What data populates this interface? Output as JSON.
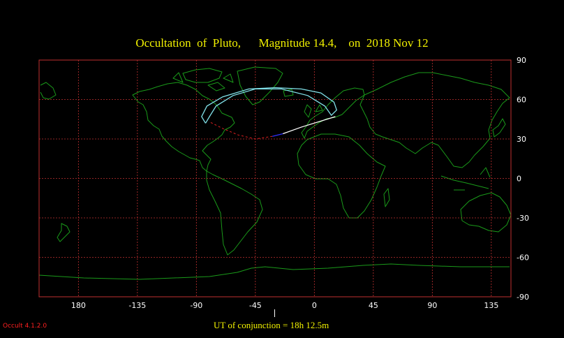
{
  "title": "Occultation  of  Pluto,      Magnitude 14.4,    on  2018 Nov 12",
  "software_version": "Occult 4.1.2.0",
  "ut_conjunction_label": "UT of conjunction = 18h 12.5m",
  "colors": {
    "background": "#000000",
    "grid": "#c03030",
    "coastline": "#1a9a1a",
    "path_outline": "#80e0e8",
    "path_center_day": "#ffffff",
    "path_center_night": "#3030ff",
    "path_invisible": "#e02020",
    "title": "#f2f200",
    "version": "#ff2020"
  },
  "axes": {
    "longitude_ticks": [
      "180",
      "-135",
      "-90",
      "-45",
      "0",
      "45",
      "90",
      "135"
    ],
    "latitude_ticks": [
      "90",
      "60",
      "30",
      "0",
      "-30",
      "-60",
      "-90"
    ]
  },
  "chart_data": {
    "type": "map",
    "projection": "equirectangular",
    "lon_range": [
      -210,
      150
    ],
    "lat_range": [
      -90,
      90
    ],
    "grid": true,
    "path_outline": [
      [
        -83,
        42
      ],
      [
        -86,
        47
      ],
      [
        -82,
        55
      ],
      [
        -70,
        62
      ],
      [
        -50,
        68
      ],
      [
        -30,
        69
      ],
      [
        -10,
        68
      ],
      [
        5,
        65
      ],
      [
        15,
        58
      ],
      [
        17,
        52
      ],
      [
        13,
        48
      ],
      [
        8,
        55
      ],
      [
        -5,
        63
      ],
      [
        -25,
        68
      ],
      [
        -45,
        68
      ],
      [
        -62,
        63
      ],
      [
        -75,
        55
      ],
      [
        -80,
        47
      ],
      [
        -83,
        42
      ]
    ],
    "central_line_day": [
      [
        16,
        47
      ],
      [
        -10,
        39
      ],
      [
        -24,
        34
      ]
    ],
    "central_line_night": [
      [
        -24,
        34
      ],
      [
        -32,
        32
      ]
    ],
    "central_line_invisible": [
      [
        -32,
        32
      ],
      [
        -45,
        30
      ],
      [
        -58,
        33
      ],
      [
        -70,
        38
      ],
      [
        -80,
        43
      ]
    ]
  }
}
